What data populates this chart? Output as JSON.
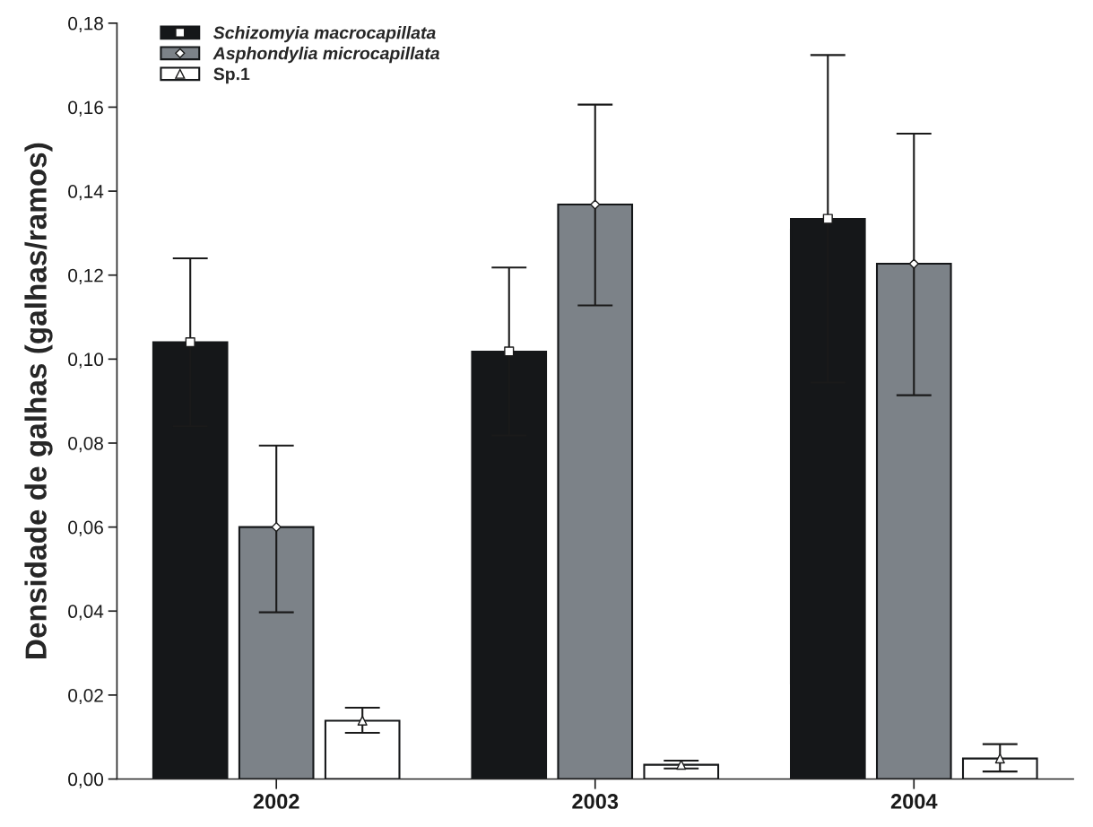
{
  "chart_data": {
    "type": "bar",
    "ylabel": "Densidade de galhas (galhas/ramos)",
    "categories": [
      "2002",
      "2003",
      "2004"
    ],
    "series": [
      {
        "name": "Schizomyia macrocapillata",
        "color": "#151719",
        "marker": "square",
        "values": [
          0.104,
          0.1018,
          0.1334
        ],
        "errors": [
          0.02,
          0.02,
          0.039
        ]
      },
      {
        "name": "Asphondylia microcapillata",
        "color": "#7c8288",
        "marker": "diamond",
        "values": [
          0.06,
          0.1368,
          0.1227
        ],
        "errors": [
          [
            0.0397,
            0.0794
          ],
          [
            0.1128,
            0.1606
          ],
          [
            0.0914,
            0.1537
          ]
        ]
      },
      {
        "name": "Sp.1",
        "color": "#ffffff",
        "marker": "triangle",
        "values": [
          0.0139,
          0.0034,
          0.0049
        ],
        "errors": [
          [
            0.011,
            0.017
          ],
          [
            0.0025,
            0.0044
          ],
          [
            0.0018,
            0.0083
          ]
        ]
      },
      {
        "type": "scatter",
        "color": "#ffffff",
        "marker": "square",
        "values": [
          0.104,
          0.1018,
          0.1334
        ]
      },
      {
        "type": "scatter",
        "color": "#ffffff",
        "marker": "diamond",
        "values": [
          0.06,
          0.1368,
          0.1227
        ]
      },
      {
        "type": "scatter",
        "color": "#ffffff",
        "marker": "triangle",
        "values": [
          0.0139,
          0.0034,
          0.0049
        ]
      }
    ],
    "ylim": [
      0,
      0.18
    ],
    "yticks": [
      {
        "value": 0,
        "label": "0,00"
      },
      {
        "value": 0.02,
        "label": "0,02"
      },
      {
        "value": 0.04,
        "label": "0,04"
      },
      {
        "value": 0.06,
        "label": "0,06"
      },
      {
        "value": 0.08,
        "label": "0,08"
      },
      {
        "value": 0.1,
        "label": "0,10"
      },
      {
        "value": 0.12,
        "label": "0,12"
      },
      {
        "value": 0.14,
        "label": "0,14"
      },
      {
        "value": 0.16,
        "label": "0,16"
      },
      {
        "value": 0.18,
        "label": "0,18"
      }
    ],
    "grid": false,
    "legend": "top left"
  }
}
